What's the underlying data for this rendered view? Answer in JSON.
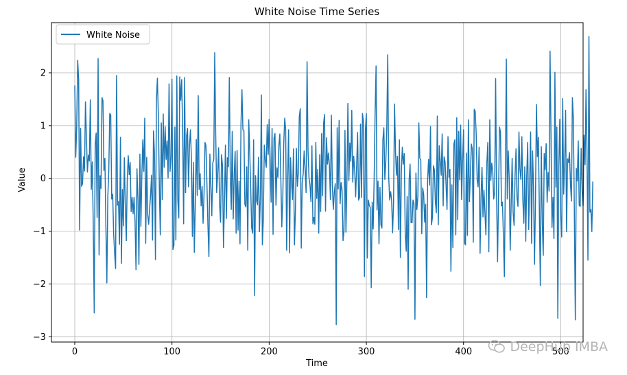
{
  "chart_data": {
    "type": "line",
    "title": "White Noise Time Series",
    "xlabel": "Time",
    "ylabel": "Value",
    "xlim": [
      -24,
      523
    ],
    "ylim": [
      -3.1,
      2.95
    ],
    "x_ticks": [
      0,
      100,
      200,
      300,
      400,
      500
    ],
    "y_ticks": [
      -3,
      -2,
      -1,
      0,
      1,
      2
    ],
    "grid": true,
    "legend_position": "top-left",
    "series": [
      {
        "name": "White Noise",
        "color": "#1f77b4",
        "x_start": 0,
        "x_step": 1,
        "values": [
          1.76,
          0.4,
          0.98,
          2.24,
          1.87,
          -0.98,
          0.95,
          -0.15,
          -0.1,
          0.41,
          0.14,
          1.45,
          0.76,
          0.12,
          0.44,
          0.33,
          1.49,
          -0.21,
          0.31,
          -0.85,
          -2.55,
          0.65,
          0.86,
          -0.74,
          2.27,
          -1.45,
          0.05,
          -0.19,
          1.53,
          1.47,
          0.15,
          0.38,
          -0.89,
          -1.98,
          -0.35,
          0.16,
          1.23,
          1.2,
          -0.39,
          -0.3,
          -1.05,
          -1.42,
          -1.71,
          1.95,
          -0.51,
          -0.44,
          -1.25,
          0.78,
          -1.61,
          -0.21,
          -0.9,
          0.39,
          -0.51,
          -1.18,
          -0.03,
          0.43,
          0.07,
          0.3,
          -0.63,
          -0.36,
          -0.67,
          -0.36,
          -0.81,
          -1.73,
          0.18,
          -0.4,
          -1.63,
          0.46,
          -0.91,
          0.05,
          0.73,
          0.13,
          1.14,
          -1.23,
          0.4,
          -0.68,
          -0.87,
          -0.58,
          -0.31,
          0.06,
          -1.17,
          0.9,
          0.47,
          -1.54,
          1.49,
          1.9,
          1.18,
          -0.18,
          -1.07,
          1.05,
          -0.4,
          1.22,
          0.21,
          0.98,
          0.36,
          0.71,
          0.01,
          1.79,
          0.13,
          0.4,
          1.88,
          -1.35,
          -1.27,
          0.97,
          -1.17,
          1.94,
          -0.41,
          -0.75,
          1.92,
          1.48,
          1.87,
          0.91,
          -0.86,
          1.91,
          -0.27,
          0.8,
          0.95,
          -0.16,
          0.61,
          0.92,
          0.38,
          -1.1,
          0.3,
          -1.4,
          -0.5,
          0.74,
          -0.32,
          1.57,
          -0.21,
          0.09,
          -0.52,
          -0.15,
          -0.85,
          -0.28,
          0.68,
          0.62,
          -0.13,
          -0.89,
          -1.48,
          0.46,
          -0.15,
          -0.71,
          0.29,
          0.36,
          2.38,
          0.86,
          -0.27,
          0.09,
          0.58,
          -0.47,
          -0.83,
          0.45,
          0.24,
          -1.31,
          -0.44,
          0.63,
          -0.76,
          0.39,
          0.22,
          1.91,
          0.08,
          -0.59,
          0.89,
          -0.77,
          0.06,
          0.51,
          -1.04,
          0.53,
          -0.98,
          -0.05,
          -1.24,
          1.03,
          1.68,
          0.92,
          0.91,
          -0.49,
          -0.54,
          0.22,
          -1.36,
          1.11,
          0.5,
          -0.18,
          -0.93,
          -1.04,
          0.73,
          -2.22,
          0.05,
          -0.42,
          -0.5,
          0.4,
          -1.01,
          -0.31,
          1.58,
          -1.26,
          -0.78,
          0.63,
          0.35,
          0.21,
          1.02,
          0.45,
          1.12,
          0.38,
          -0.45,
          0.95,
          -1.06,
          0.76,
          0.85,
          -0.51,
          0.2,
          0.02,
          0.62,
          0.84,
          0.01,
          -0.92,
          -0.38,
          0.66,
          1.14,
          0.92,
          -1.36,
          0.03,
          0.92,
          -1.41,
          0.39,
          -0.08,
          -0.4,
          0.56,
          -1.26,
          -0.63,
          0.57,
          -0.15,
          0.1,
          1.17,
          1.32,
          -1.32,
          -0.08,
          0.09,
          0.52,
          0.16,
          -0.27,
          2.21,
          0.52,
          0.01,
          -0.12,
          -0.44,
          0.62,
          -0.86,
          -0.74,
          -0.87,
          0.68,
          -0.38,
          0.17,
          -1.04,
          0.45,
          -0.63,
          0.85,
          -0.33,
          1.04,
          1.21,
          -0.62,
          0.77,
          0.27,
          0.48,
          0.25,
          -0.4,
          1.2,
          -0.12,
          -0.59,
          -0.27,
          -0.1,
          -2.77,
          0.96,
          -0.2,
          1.1,
          -0.48,
          -0.08,
          -0.22,
          -1.18,
          -1.0,
          0.91,
          -1.02,
          -0.05,
          1.42,
          -0.04,
          0.67,
          0.32,
          1.29,
          -0.07,
          0.42,
          0.15,
          -0.35,
          0.24,
          0.87,
          -0.41,
          -0.36,
          1.03,
          -0.36,
          1.23,
          1.08,
          -1.86,
          0.91,
          1.23,
          -1.51,
          -0.41,
          -0.51,
          -0.55,
          -2.07,
          -0.45,
          -0.96,
          -0.03,
          1.24,
          2.13,
          -0.6,
          -0.05,
          -1.24,
          -0.17,
          -0.88,
          -0.94,
          0.73,
          0.96,
          -0.02,
          0.31,
          0.93,
          2.34,
          0.02,
          -0.41,
          -0.25,
          -0.41,
          -1.03,
          -0.44,
          1.41,
          0.5,
          0.06,
          0.42,
          -0.97,
          0.73,
          -1.5,
          0.12,
          0.59,
          0.27,
          0.47,
          -1.04,
          -1.38,
          -0.34,
          -2.1,
          -0.03,
          0.27,
          -0.84,
          -0.84,
          -0.41,
          -0.47,
          -2.67,
          0.1,
          -0.59,
          -0.35,
          1.05,
          0.38,
          0.35,
          -1.05,
          -0.18,
          -0.31,
          -0.83,
          -0.49,
          -2.26,
          -0.04,
          0.36,
          -0.13,
          0.98,
          -0.88,
          -0.74,
          0.24,
          0.16,
          -0.44,
          -0.65,
          1.18,
          -0.88,
          0.62,
          0.32,
          0.06,
          0.84,
          -0.52,
          0.41,
          0.31,
          -0.12,
          -0.59,
          0.79,
          0.02,
          0.17,
          -1.76,
          -0.12,
          -1.31,
          0.65,
          0.73,
          -1.07,
          1.15,
          -0.78,
          0.89,
          -0.03,
          1.01,
          -0.4,
          0.34,
          0.92,
          -1.23,
          -1.26,
          0.48,
          -1.08,
          1.11,
          -0.44,
          0.04,
          0.65,
          0.56,
          -1.21,
          1.31,
          1.27,
          0.86,
          -0.03,
          -0.16,
          0.59,
          -1.42,
          -0.34,
          0.21,
          -0.73,
          -0.22,
          -0.65,
          -1.07,
          0.3,
          0.68,
          -1.39,
          1.11,
          -0.04,
          0.29,
          0.15,
          -0.39,
          -0.28,
          1.89,
          -0.35,
          -1.58,
          -0.3,
          0.97,
          0.88,
          -0.52,
          -0.45,
          -1.07,
          -1.86,
          -0.07,
          2.26,
          -0.39,
          0.52,
          -0.02,
          -1.36,
          -0.48,
          0.38,
          -0.64,
          -0.89,
          0.05,
          0.56,
          -0.37,
          -0.53,
          0.88,
          0.18,
          -0.02,
          0.79,
          -0.4,
          -0.85,
          0.22,
          -1.19,
          0.04,
          0.68,
          -0.97,
          -0.1,
          0.88,
          -1.23,
          0.52,
          -0.17,
          -1.63,
          -0.41,
          1.4,
          0.41,
          0.78,
          -0.61,
          -2.03,
          0.6,
          -0.84,
          -1.46,
          0.47,
          0.16,
          0.66,
          -0.45,
          0.11,
          -0.24,
          2.41,
          0.79,
          -0.93,
          -0.36,
          -1.14,
          2.01,
          -0.17,
          0.97,
          -2.65,
          0.23,
          1.12,
          -0.73,
          -1.11,
          1.51,
          -0.3,
          0.26,
          1.29,
          -1.01,
          0.37,
          0.3,
          0.49,
          -0.11,
          -0.43,
          1.53,
          1.12,
          -0.64,
          -2.68,
          0.19,
          -0.05,
          0.71,
          -0.51,
          -0.53,
          0.57,
          -0.23,
          -0.52,
          0.82,
          0.26,
          1.68,
          0.54,
          -1.55,
          2.69,
          -0.64,
          -0.59,
          -1.01,
          -0.06
        ]
      }
    ]
  },
  "watermark": {
    "text": "DeepHub IMBA",
    "icon": "wechat-icon"
  }
}
